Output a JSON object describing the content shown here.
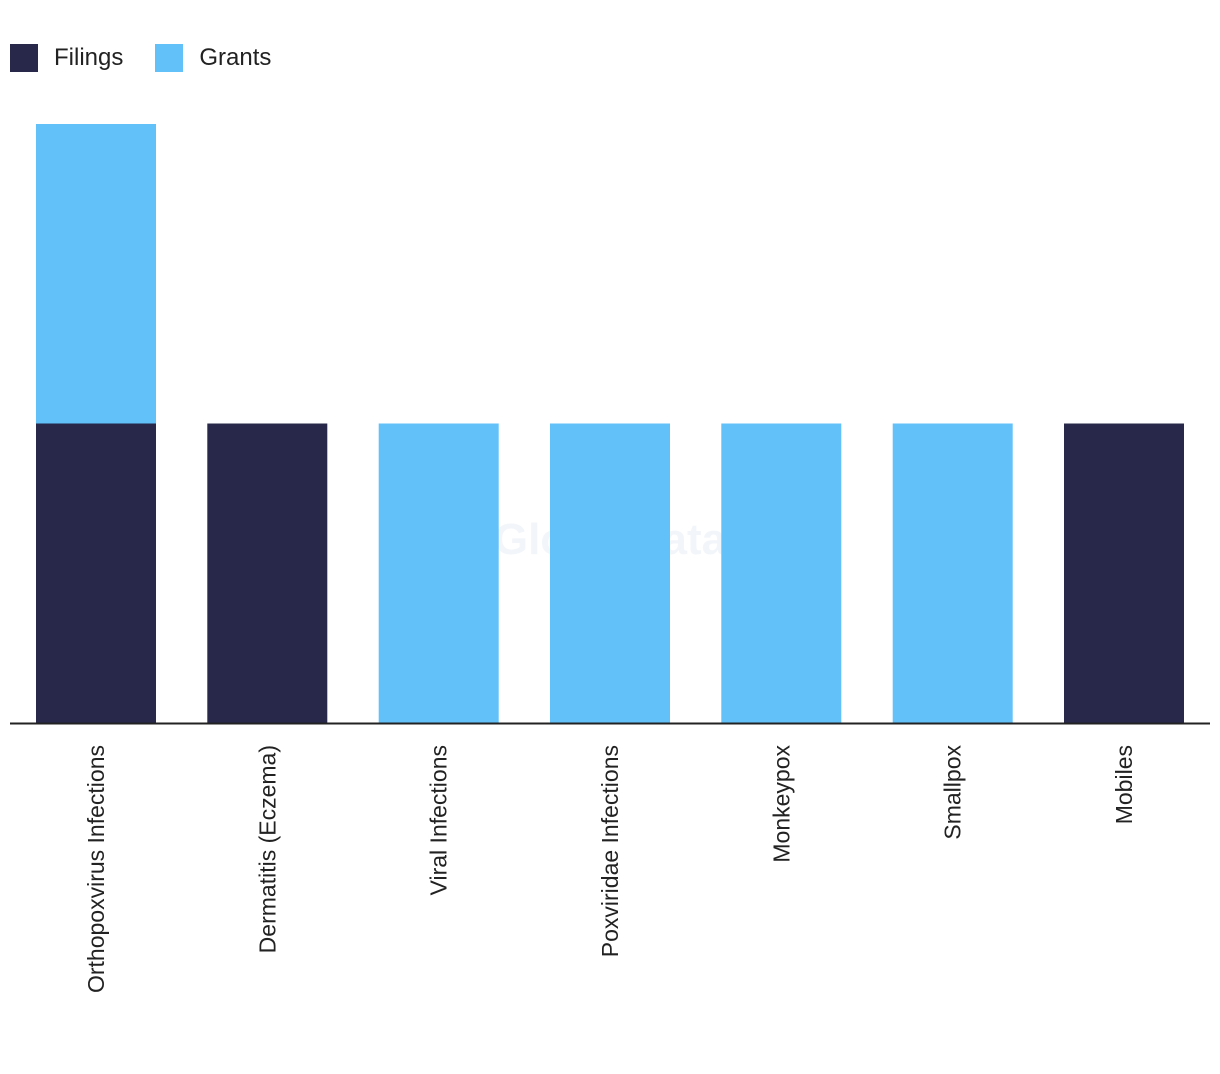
{
  "legend": {
    "items": [
      {
        "label": "Filings",
        "color": "#27284a"
      },
      {
        "label": "Grants",
        "color": "#62c1f9"
      }
    ]
  },
  "watermark": "GlobalData",
  "chart_data": {
    "type": "bar",
    "stacked": true,
    "categories": [
      "Orthopoxvirus Infections",
      "Dermatitis (Eczema)",
      "Viral Infections",
      "Poxviridae Infections",
      "Monkeypox",
      "Smallpox",
      "Mobiles"
    ],
    "series": [
      {
        "name": "Filings",
        "color": "#27284a",
        "values": [
          1,
          1,
          0,
          0,
          0,
          0,
          1
        ]
      },
      {
        "name": "Grants",
        "color": "#62c1f9",
        "values": [
          1,
          0,
          1,
          1,
          1,
          1,
          0
        ]
      }
    ],
    "ylim": [
      0,
      2
    ],
    "grid": false,
    "legend_position": "top-left"
  }
}
